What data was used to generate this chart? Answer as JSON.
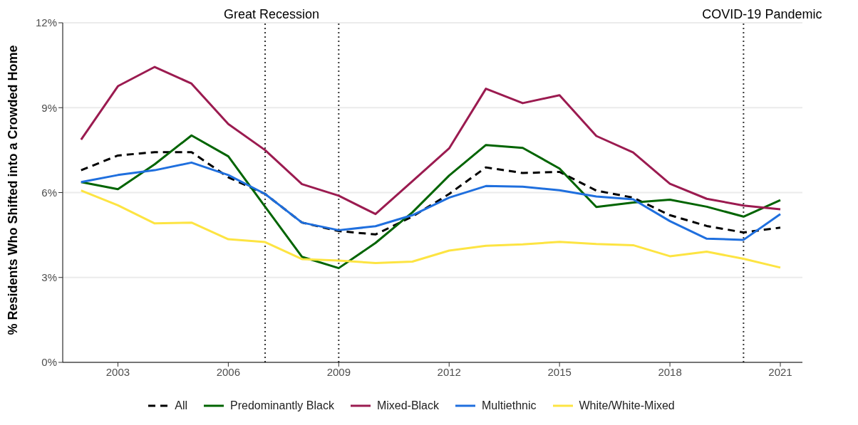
{
  "chart_data": {
    "type": "line",
    "ylabel": "% Residents Who Shifted into a Crowded Home",
    "x": [
      2002,
      2003,
      2004,
      2005,
      2006,
      2007,
      2008,
      2009,
      2010,
      2011,
      2012,
      2013,
      2014,
      2015,
      2016,
      2017,
      2018,
      2019,
      2020,
      2021
    ],
    "series": [
      {
        "name": "All",
        "color": "#000000",
        "line_style": "dashed",
        "values": [
          6.79,
          7.31,
          7.43,
          7.43,
          6.54,
          5.95,
          4.94,
          4.64,
          4.52,
          5.15,
          5.95,
          6.89,
          6.69,
          6.73,
          6.07,
          5.82,
          5.2,
          4.82,
          4.59,
          4.76
        ]
      },
      {
        "name": "Predominantly Black",
        "color": "#006400",
        "values": [
          6.37,
          6.12,
          7.0,
          8.02,
          7.28,
          5.5,
          3.73,
          3.33,
          4.22,
          5.3,
          6.6,
          7.68,
          7.58,
          6.85,
          5.49,
          5.65,
          5.75,
          5.5,
          5.15,
          5.73
        ]
      },
      {
        "name": "Mixed-Black",
        "color": "#9b1b50",
        "values": [
          7.87,
          9.76,
          10.44,
          9.85,
          8.42,
          7.5,
          6.3,
          5.89,
          5.24,
          6.4,
          7.56,
          9.67,
          9.16,
          9.44,
          8.0,
          7.42,
          6.31,
          5.78,
          5.54,
          5.41
        ]
      },
      {
        "name": "Multiethnic",
        "color": "#1f6fde",
        "values": [
          6.37,
          6.62,
          6.79,
          7.06,
          6.62,
          5.95,
          4.94,
          4.67,
          4.81,
          5.2,
          5.82,
          6.23,
          6.21,
          6.08,
          5.86,
          5.76,
          4.99,
          4.37,
          4.33,
          5.24
        ]
      },
      {
        "name": "White/White-Mixed",
        "color": "#fde442",
        "values": [
          6.07,
          5.55,
          4.91,
          4.94,
          4.35,
          4.25,
          3.65,
          3.6,
          3.51,
          3.56,
          3.95,
          4.12,
          4.17,
          4.26,
          4.18,
          4.14,
          3.75,
          3.91,
          3.66,
          3.35
        ]
      }
    ],
    "xlim": [
      2001.5,
      2021.6
    ],
    "xticks": [
      2003,
      2006,
      2009,
      2012,
      2015,
      2018,
      2021
    ],
    "ylim": [
      0,
      12
    ],
    "yticks": [
      {
        "value": 0,
        "label": "0%"
      },
      {
        "value": 3,
        "label": "3%"
      },
      {
        "value": 6,
        "label": "6%"
      },
      {
        "value": 9,
        "label": "9%"
      },
      {
        "value": 12,
        "label": "12%"
      }
    ],
    "grid": "y",
    "legend": "bottom",
    "marker": "none",
    "ref_lines": [
      {
        "axis": "x",
        "value": 2007,
        "label": "Great Recession",
        "line_style": "dotted",
        "color": "#333333"
      },
      {
        "axis": "x",
        "value": 2009,
        "line_style": "dotted",
        "color": "#333333"
      },
      {
        "axis": "x",
        "value": 2020,
        "label": "COVID-19 Pandemic",
        "line_style": "dotted",
        "color": "#333333"
      }
    ]
  }
}
